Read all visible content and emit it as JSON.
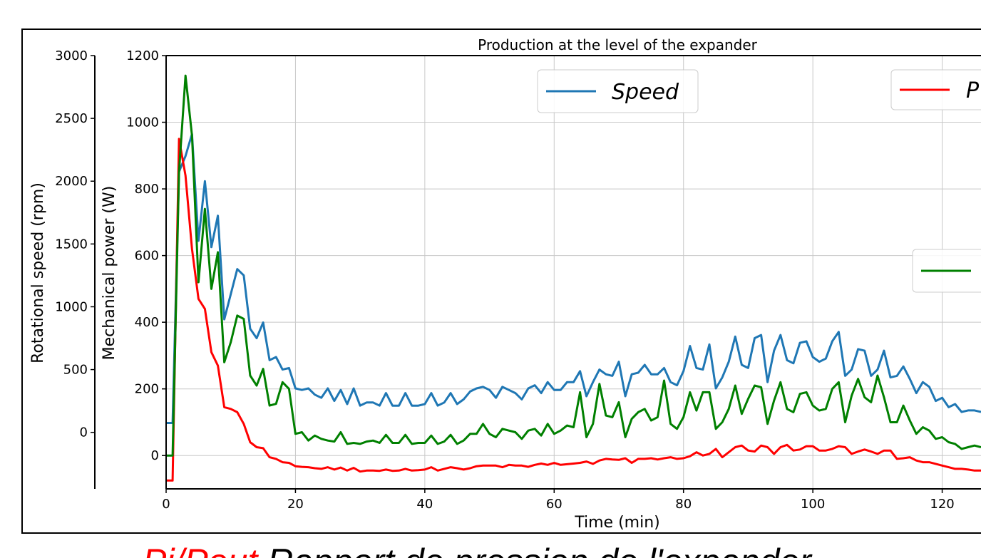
{
  "chart_data": {
    "type": "line",
    "title": "Production at the level of the expander",
    "xlabel": "Time (min)",
    "ylabel_left_outer": "Rotational speed (rpm)",
    "ylabel_left_inner": "Mechanical power (W)",
    "xlim": [
      0,
      126
    ],
    "power_axis": {
      "ylim": [
        -100,
        1200
      ],
      "ticks": [
        0,
        200,
        400,
        600,
        800,
        1000,
        1200
      ],
      "tick_labels": [
        "0",
        "200",
        "400",
        "600",
        "800",
        "1000",
        "1200"
      ]
    },
    "speed_axis": {
      "ylim": [
        -450,
        3000
      ],
      "ticks": [
        0,
        500,
        1000,
        1500,
        2000,
        2500,
        3000
      ],
      "tick_labels": [
        "0",
        "500",
        "1000",
        "1500",
        "2000",
        "2500",
        "3000"
      ]
    },
    "x_ticks": [
      0,
      20,
      40,
      60,
      80,
      100,
      120
    ],
    "x_tick_labels": [
      "0",
      "20",
      "40",
      "60",
      "80",
      "100",
      "120"
    ],
    "grid": true,
    "legend_entries": [
      {
        "label": "Speed",
        "color": "#1f77b4",
        "placement": "top-center"
      },
      {
        "label": "P",
        "color": "#ff0000",
        "placement": "top-right"
      },
      {
        "label": "",
        "color": "#008000",
        "placement": "right"
      }
    ],
    "series": [
      {
        "color": "#1f77b4",
        "x": [
          0,
          1,
          2,
          3,
          4,
          5,
          6,
          7,
          8,
          9,
          10,
          11,
          12,
          13,
          14,
          15,
          16,
          17,
          18,
          19,
          20,
          21,
          22,
          23,
          24,
          25,
          26,
          27,
          28,
          29,
          30,
          31,
          32,
          33,
          34,
          35,
          36,
          37,
          38,
          39,
          40,
          41,
          42,
          43,
          44,
          45,
          46,
          47,
          48,
          49,
          50,
          51,
          52,
          53,
          54,
          55,
          56,
          57,
          58,
          59,
          60,
          61,
          62,
          63,
          64,
          65,
          66,
          67,
          68,
          69,
          70,
          71,
          72,
          73,
          74,
          75,
          76,
          77,
          78,
          79,
          80,
          81,
          82,
          83,
          84,
          85,
          86,
          87,
          88,
          89,
          90,
          91,
          92,
          93,
          94,
          95,
          96,
          97,
          98,
          99,
          100,
          101,
          102,
          103,
          104,
          105,
          106,
          107,
          108,
          109,
          110,
          111,
          112,
          113,
          114,
          115,
          116,
          117,
          118,
          119,
          120,
          121,
          122,
          123,
          124,
          125,
          126
        ],
        "y": [
          70,
          70,
          870,
          920,
          990,
          650,
          840,
          630,
          730,
          400,
          480,
          560,
          540,
          370,
          340,
          390,
          270,
          280,
          240,
          245,
          180,
          175,
          180,
          160,
          150,
          180,
          140,
          175,
          130,
          180,
          125,
          135,
          135,
          125,
          165,
          125,
          125,
          165,
          125,
          125,
          130,
          165,
          125,
          135,
          165,
          130,
          145,
          170,
          180,
          185,
          175,
          150,
          185,
          175,
          165,
          145,
          180,
          190,
          165,
          200,
          175,
          175,
          200,
          200,
          235,
          155,
          200,
          240,
          225,
          220,
          265,
          155,
          225,
          230,
          255,
          225,
          225,
          245,
          200,
          190,
          235,
          315,
          245,
          240,
          320,
          180,
          215,
          265,
          345,
          255,
          245,
          340,
          350,
          200,
          300,
          350,
          270,
          260,
          325,
          330,
          280,
          265,
          275,
          330,
          360,
          220,
          240,
          305,
          300,
          220,
          240,
          300,
          215,
          220,
          250,
          210,
          165,
          200,
          185,
          140,
          150,
          120,
          130,
          105,
          110,
          110,
          105
        ]
      },
      {
        "color": "#ff0000",
        "x": [
          0,
          1,
          2,
          3,
          4,
          5,
          6,
          7,
          8,
          9,
          10,
          11,
          12,
          13,
          14,
          15,
          16,
          17,
          18,
          19,
          20,
          21,
          22,
          23,
          24,
          25,
          26,
          27,
          28,
          29,
          30,
          31,
          32,
          33,
          34,
          35,
          36,
          37,
          38,
          39,
          40,
          41,
          42,
          43,
          44,
          45,
          46,
          47,
          48,
          49,
          50,
          51,
          52,
          53,
          54,
          55,
          56,
          57,
          58,
          59,
          60,
          61,
          62,
          63,
          64,
          65,
          66,
          67,
          68,
          69,
          70,
          71,
          72,
          73,
          74,
          75,
          76,
          77,
          78,
          79,
          80,
          81,
          82,
          83,
          84,
          85,
          86,
          87,
          88,
          89,
          90,
          91,
          92,
          93,
          94,
          95,
          96,
          97,
          98,
          99,
          100,
          101,
          102,
          103,
          104,
          105,
          106,
          107,
          108,
          109,
          110,
          111,
          112,
          113,
          114,
          115,
          116,
          117,
          118,
          119,
          120,
          121,
          122,
          123,
          124,
          125,
          126
        ],
        "y": [
          -75,
          -75,
          950,
          840,
          620,
          470,
          440,
          310,
          270,
          145,
          140,
          130,
          95,
          40,
          25,
          22,
          -5,
          -10,
          -20,
          -22,
          -32,
          -34,
          -35,
          -38,
          -40,
          -35,
          -42,
          -36,
          -45,
          -37,
          -48,
          -45,
          -45,
          -46,
          -42,
          -46,
          -45,
          -40,
          -45,
          -44,
          -42,
          -35,
          -45,
          -40,
          -35,
          -38,
          -42,
          -38,
          -32,
          -30,
          -30,
          -30,
          -35,
          -28,
          -30,
          -30,
          -34,
          -28,
          -24,
          -28,
          -22,
          -28,
          -26,
          -24,
          -22,
          -18,
          -25,
          -15,
          -10,
          -12,
          -13,
          -8,
          -22,
          -10,
          -10,
          -8,
          -12,
          -8,
          -5,
          -10,
          -8,
          -2,
          10,
          0,
          5,
          20,
          -5,
          10,
          25,
          30,
          15,
          12,
          30,
          25,
          5,
          25,
          32,
          15,
          18,
          28,
          28,
          15,
          15,
          20,
          28,
          25,
          5,
          12,
          18,
          12,
          5,
          15,
          15,
          -10,
          -8,
          -5,
          -15,
          -20,
          -20,
          -25,
          -30,
          -35,
          -40,
          -40,
          -42,
          -45,
          -45
        ]
      },
      {
        "color": "#008000",
        "x": [
          0,
          1,
          2,
          3,
          4,
          5,
          6,
          7,
          8,
          9,
          10,
          11,
          12,
          13,
          14,
          15,
          16,
          17,
          18,
          19,
          20,
          21,
          22,
          23,
          24,
          25,
          26,
          27,
          28,
          29,
          30,
          31,
          32,
          33,
          34,
          35,
          36,
          37,
          38,
          39,
          40,
          41,
          42,
          43,
          44,
          45,
          46,
          47,
          48,
          49,
          50,
          51,
          52,
          53,
          54,
          55,
          56,
          57,
          58,
          59,
          60,
          61,
          62,
          63,
          64,
          65,
          66,
          67,
          68,
          69,
          70,
          71,
          72,
          73,
          74,
          75,
          76,
          77,
          78,
          79,
          80,
          81,
          82,
          83,
          84,
          85,
          86,
          87,
          88,
          89,
          90,
          91,
          92,
          93,
          94,
          95,
          96,
          97,
          98,
          99,
          100,
          101,
          102,
          103,
          104,
          105,
          106,
          107,
          108,
          109,
          110,
          111,
          112,
          113,
          114,
          115,
          116,
          117,
          118,
          119,
          120,
          121,
          122,
          123,
          124,
          125,
          126
        ],
        "y": [
          0,
          0,
          850,
          1140,
          960,
          520,
          740,
          500,
          610,
          280,
          340,
          420,
          410,
          240,
          210,
          260,
          150,
          155,
          220,
          200,
          65,
          70,
          45,
          60,
          50,
          45,
          42,
          70,
          35,
          38,
          35,
          42,
          45,
          38,
          62,
          38,
          38,
          62,
          35,
          38,
          38,
          60,
          35,
          42,
          62,
          35,
          45,
          65,
          65,
          95,
          65,
          55,
          80,
          75,
          70,
          50,
          75,
          80,
          60,
          95,
          65,
          75,
          90,
          85,
          190,
          55,
          95,
          215,
          120,
          115,
          160,
          55,
          110,
          130,
          140,
          105,
          115,
          225,
          95,
          80,
          115,
          190,
          135,
          190,
          190,
          80,
          100,
          140,
          210,
          125,
          170,
          210,
          205,
          95,
          165,
          220,
          140,
          130,
          185,
          190,
          150,
          135,
          140,
          200,
          220,
          100,
          180,
          230,
          175,
          160,
          240,
          175,
          100,
          100,
          150,
          105,
          65,
          85,
          75,
          50,
          55,
          40,
          35,
          20,
          25,
          30,
          25
        ]
      }
    ],
    "caption": {
      "part1": "Pi",
      "part2": "/P",
      "part3": "out",
      "part4": " Rapport de pression de l'expander",
      "color_red": "#ff0000",
      "color_black": "#000000"
    }
  }
}
